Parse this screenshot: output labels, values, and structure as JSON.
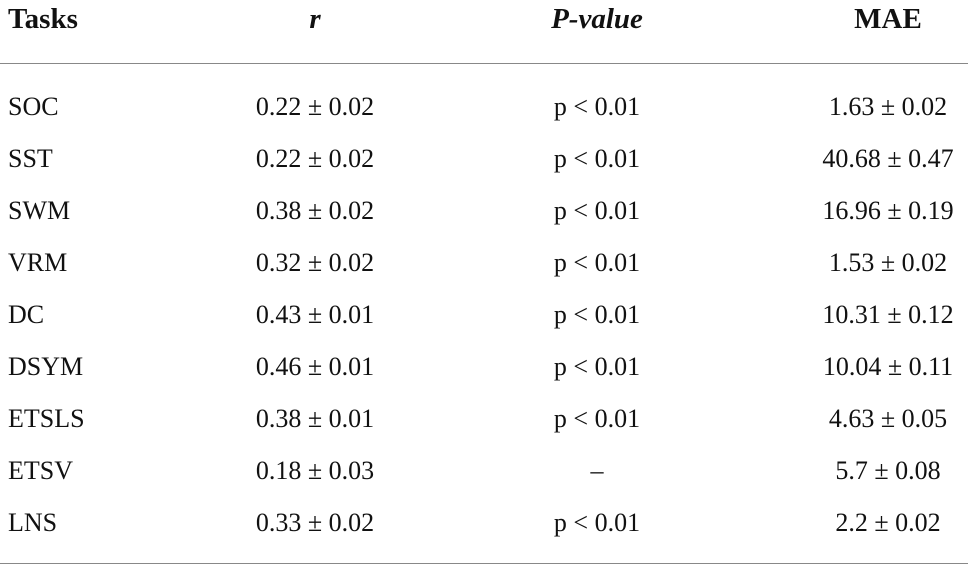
{
  "table": {
    "header": [
      "Tasks",
      "r",
      "P-value",
      "MAE"
    ],
    "rows": [
      [
        "SOC",
        "0.22 ± 0.02",
        "p < 0.01",
        "1.63 ± 0.02"
      ],
      [
        "SST",
        "0.22 ± 0.02",
        "p < 0.01",
        "40.68 ± 0.47"
      ],
      [
        "SWM",
        "0.38 ± 0.02",
        "p < 0.01",
        "16.96 ± 0.19"
      ],
      [
        "VRM",
        "0.32 ± 0.02",
        "p < 0.01",
        "1.53 ± 0.02"
      ],
      [
        "DC",
        "0.43 ± 0.01",
        "p < 0.01",
        "10.31 ± 0.12"
      ],
      [
        "DSYM",
        "0.46 ± 0.01",
        "p < 0.01",
        "10.04 ± 0.11"
      ],
      [
        "ETSLS",
        "0.38 ± 0.01",
        "p < 0.01",
        "4.63 ± 0.05"
      ],
      [
        "ETSV",
        "0.18 ± 0.03",
        "–",
        "5.7 ± 0.08"
      ],
      [
        "LNS",
        "0.33 ± 0.02",
        "p < 0.01",
        "2.2 ± 0.02"
      ]
    ]
  }
}
